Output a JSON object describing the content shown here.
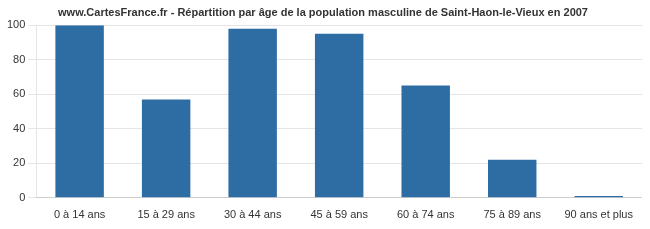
{
  "chart_data": {
    "type": "bar",
    "title": "www.CartesFrance.fr - Répartition par âge de la population masculine de Saint-Haon-le-Vieux en 2007",
    "categories": [
      "0 à 14 ans",
      "15 à 29 ans",
      "30 à 44 ans",
      "45 à 59 ans",
      "60 à 74 ans",
      "75 à 89 ans",
      "90 ans et plus"
    ],
    "values": [
      100,
      57,
      98,
      95,
      65,
      22,
      1
    ],
    "color": "#2e6da4",
    "ylim": [
      0,
      100
    ],
    "yticks": [
      0,
      20,
      40,
      60,
      80,
      100
    ],
    "grid": true
  }
}
